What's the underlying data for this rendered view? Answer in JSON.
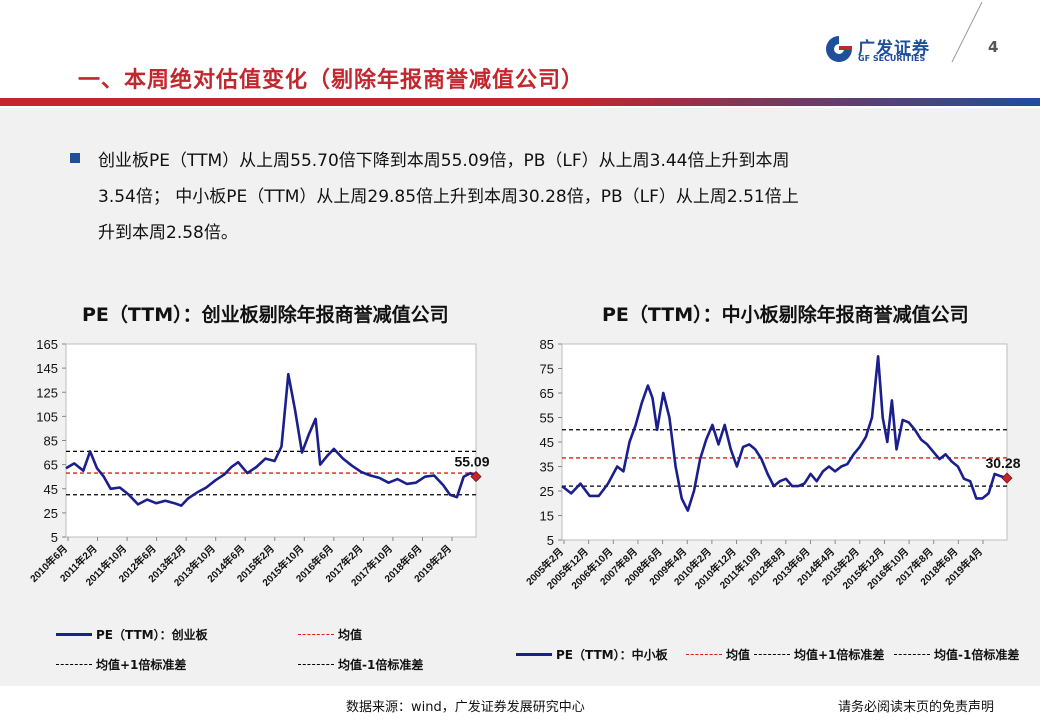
{
  "header": {
    "title": "一、本周绝对估值变化（剔除年报商誉减值公司）",
    "page_number": "4",
    "logo_cn": "广发证券",
    "logo_en": "GF SECURITIES"
  },
  "bullet": {
    "line1": "创业板PE（TTM）从上周55.70倍下降到本周55.09倍，PB（LF）从上周3.44倍上升到本周",
    "line2": "3.54倍；  中小板PE（TTM）从上周29.85倍上升到本周30.28倍，PB（LF）从上周2.51倍上",
    "line3": "升到本周2.58倍。"
  },
  "footer": {
    "source": "数据来源：wind，广发证券发展研究中心",
    "disclaimer": "请务必阅读末页的免责声明"
  },
  "colors": {
    "series": "#1a1f8c",
    "mean": "#e01b1b",
    "band": "#000000",
    "title_red": "#c1272d",
    "brand_blue": "#1f4e9c"
  },
  "chart_data": [
    {
      "type": "line",
      "title": "PE（TTM）：创业板剔除年报商誉减值公司",
      "ylim": [
        5,
        165
      ],
      "yticks": [
        "165",
        "145",
        "125",
        "105",
        "85",
        "65",
        "45",
        "25",
        "5"
      ],
      "xticks": [
        "2010年6月",
        "2011年2月",
        "2011年10月",
        "2012年6月",
        "2013年2月",
        "2013年10月",
        "2014年6月",
        "2015年2月",
        "2015年10月",
        "2016年6月",
        "2017年2月",
        "2017年10月",
        "2018年6月",
        "2019年2月"
      ],
      "x_start": 2010.42,
      "x_end": 2019.42,
      "mean": 58,
      "plus1sd": 76,
      "minus1sd": 40,
      "last_label": "55.09",
      "series": [
        {
          "name": "PE（TTM）：创业板",
          "x": [
            2010.42,
            2010.6,
            2010.8,
            2010.95,
            2011.1,
            2011.25,
            2011.4,
            2011.6,
            2011.8,
            2012.0,
            2012.2,
            2012.4,
            2012.6,
            2012.8,
            2012.95,
            2013.1,
            2013.3,
            2013.5,
            2013.7,
            2013.9,
            2014.05,
            2014.2,
            2014.4,
            2014.6,
            2014.8,
            2015.0,
            2015.15,
            2015.3,
            2015.45,
            2015.6,
            2015.75,
            2015.9,
            2016.0,
            2016.15,
            2016.3,
            2016.5,
            2016.7,
            2016.9,
            2017.1,
            2017.3,
            2017.5,
            2017.7,
            2017.9,
            2018.1,
            2018.3,
            2018.5,
            2018.7,
            2018.85,
            2019.0,
            2019.15,
            2019.3,
            2019.42
          ],
          "values": [
            62,
            66,
            60,
            76,
            62,
            55,
            45,
            46,
            40,
            32,
            36,
            33,
            35,
            33,
            31,
            37,
            42,
            46,
            52,
            57,
            63,
            67,
            58,
            63,
            70,
            68,
            80,
            140,
            110,
            75,
            90,
            103,
            65,
            72,
            78,
            70,
            64,
            59,
            56,
            54,
            50,
            53,
            49,
            50,
            55,
            56,
            48,
            40,
            38,
            55,
            58,
            55.09
          ]
        }
      ],
      "legend": [
        "PE（TTM）：创业板",
        "均值",
        "均值+1倍标准差",
        "均值-1倍标准差"
      ]
    },
    {
      "type": "line",
      "title": "PE（TTM）：中小板剔除年报商誉减值公司",
      "ylim": [
        5,
        85
      ],
      "yticks": [
        "85",
        "75",
        "65",
        "55",
        "45",
        "35",
        "25",
        "15",
        "5"
      ],
      "xticks": [
        "2005年2月",
        "2005年12月",
        "2006年10月",
        "2007年8月",
        "2008年6月",
        "2009年4月",
        "2010年2月",
        "2010年12月",
        "2011年10月",
        "2012年8月",
        "2013年6月",
        "2014年4月",
        "2015年2月",
        "2015年12月",
        "2016年10月",
        "2017年8月",
        "2018年6月",
        "2019年4月"
      ],
      "x_start": 2005.0,
      "x_end": 2019.5,
      "mean": 38.5,
      "plus1sd": 50,
      "minus1sd": 27,
      "last_label": "30.28",
      "series": [
        {
          "name": "PE（TTM）：中小板",
          "x": [
            2005.0,
            2005.3,
            2005.6,
            2005.9,
            2006.2,
            2006.5,
            2006.8,
            2007.0,
            2007.2,
            2007.4,
            2007.6,
            2007.8,
            2007.95,
            2008.1,
            2008.3,
            2008.5,
            2008.7,
            2008.9,
            2009.1,
            2009.3,
            2009.5,
            2009.7,
            2009.9,
            2010.1,
            2010.3,
            2010.5,
            2010.7,
            2010.9,
            2011.1,
            2011.3,
            2011.5,
            2011.7,
            2011.9,
            2012.1,
            2012.3,
            2012.5,
            2012.7,
            2012.9,
            2013.1,
            2013.3,
            2013.5,
            2013.7,
            2013.9,
            2014.1,
            2014.3,
            2014.5,
            2014.7,
            2014.9,
            2015.1,
            2015.3,
            2015.45,
            2015.6,
            2015.75,
            2015.9,
            2016.1,
            2016.3,
            2016.5,
            2016.7,
            2016.9,
            2017.1,
            2017.3,
            2017.5,
            2017.7,
            2017.9,
            2018.1,
            2018.3,
            2018.5,
            2018.7,
            2018.9,
            2019.1,
            2019.3,
            2019.5
          ],
          "values": [
            27,
            24,
            28,
            23,
            23,
            28,
            35,
            33,
            45,
            52,
            61,
            68,
            63,
            50,
            65,
            55,
            35,
            22,
            17,
            25,
            38,
            46,
            52,
            44,
            52,
            42,
            35,
            43,
            44,
            42,
            38,
            32,
            27,
            29,
            30,
            27,
            27,
            28,
            32,
            29,
            33,
            35,
            33,
            35,
            36,
            40,
            43,
            47,
            55,
            80,
            55,
            45,
            62,
            42,
            54,
            53,
            50,
            46,
            44,
            41,
            38,
            40,
            37,
            35,
            30,
            29,
            22,
            22,
            24,
            32,
            31,
            30.28
          ]
        }
      ],
      "legend": [
        "PE（TTM）：中小板",
        "均值",
        "均值+1倍标准差",
        "均值-1倍标准差"
      ]
    }
  ]
}
